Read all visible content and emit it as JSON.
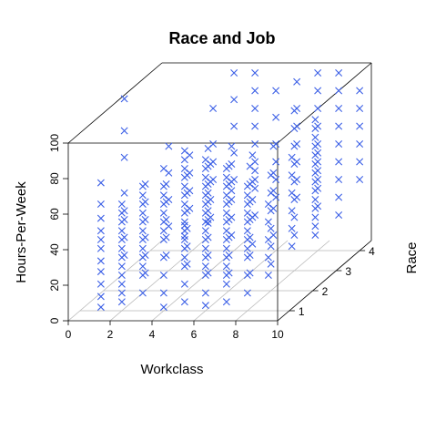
{
  "chart_data": {
    "type": "scatter",
    "title": "Race and Job",
    "xlabel": "Workclass",
    "ylabel": "Race",
    "zlabel": "Hours-Per-Week",
    "xlim": [
      0,
      10
    ],
    "ylim": [
      0.5,
      4.5
    ],
    "zlim": [
      0,
      100
    ],
    "x_ticks": [
      "0",
      "2",
      "4",
      "6",
      "8",
      "10"
    ],
    "y_ticks": [
      "1",
      "2",
      "3",
      "4"
    ],
    "z_ticks": [
      "0",
      "20",
      "40",
      "60",
      "80",
      "100"
    ],
    "marker": "x",
    "color": "#3a5ee6",
    "grid": true,
    "columns": [
      {
        "x": 1,
        "y": 1,
        "z": [
          2,
          8,
          15,
          22,
          28,
          35,
          40,
          45,
          52,
          60,
          72
        ]
      },
      {
        "x": 1,
        "y": 2,
        "z": [
          20,
          30,
          40,
          45,
          55,
          75,
          90,
          108
        ]
      },
      {
        "x": 2,
        "y": 1,
        "z": [
          5,
          10,
          15,
          20,
          25,
          30,
          35,
          40,
          45,
          50,
          55,
          60
        ]
      },
      {
        "x": 2,
        "y": 2,
        "z": [
          10,
          20,
          30,
          40,
          50,
          60
        ]
      },
      {
        "x": 2,
        "y": 3,
        "z": [
          25,
          40,
          55,
          70
        ]
      },
      {
        "x": 3,
        "y": 1,
        "z": [
          10,
          20,
          25,
          30,
          35,
          40,
          45,
          50,
          55,
          60,
          65,
          70
        ]
      },
      {
        "x": 3,
        "y": 2,
        "z": [
          20,
          30,
          40,
          50,
          60
        ]
      },
      {
        "x": 3,
        "y": 3,
        "z": [
          35,
          45,
          55,
          65
        ]
      },
      {
        "x": 3,
        "y": 4,
        "z": [
          40,
          50,
          60,
          80
        ]
      },
      {
        "x": 4,
        "y": 1,
        "z": [
          2,
          10,
          20,
          30,
          40,
          45,
          50,
          55,
          60,
          65,
          70,
          80
        ]
      },
      {
        "x": 4,
        "y": 2,
        "z": [
          15,
          25,
          35,
          45,
          55,
          65
        ]
      },
      {
        "x": 4,
        "y": 3,
        "z": [
          30,
          40,
          50,
          60
        ]
      },
      {
        "x": 4,
        "y": 4,
        "z": [
          40,
          55,
          70,
          85,
          100
        ]
      },
      {
        "x": 5,
        "y": 1,
        "z": [
          5,
          15,
          25,
          30,
          35,
          40,
          42,
          45,
          48,
          50,
          55,
          60,
          65,
          70,
          75,
          80,
          85,
          90
        ]
      },
      {
        "x": 5,
        "y": 2,
        "z": [
          10,
          20,
          30,
          38,
          40,
          45,
          50,
          55,
          60,
          70,
          80
        ]
      },
      {
        "x": 5,
        "y": 3,
        "z": [
          20,
          30,
          40,
          45,
          50,
          60,
          70
        ]
      },
      {
        "x": 5,
        "y": 4,
        "z": [
          20,
          35,
          40,
          45,
          50,
          60,
          70,
          80,
          90,
          100
        ]
      },
      {
        "x": 6,
        "y": 1,
        "z": [
          3,
          10,
          20,
          25,
          30,
          35,
          40,
          45,
          50,
          55,
          60,
          65,
          70,
          75,
          80,
          85
        ]
      },
      {
        "x": 6,
        "y": 2,
        "z": [
          10,
          20,
          30,
          40,
          50,
          60,
          70
        ]
      },
      {
        "x": 6,
        "y": 3,
        "z": [
          15,
          30,
          40,
          50,
          65
        ]
      },
      {
        "x": 6,
        "y": 4,
        "z": [
          30,
          40,
          50,
          60,
          75,
          90
        ]
      },
      {
        "x": 7,
        "y": 1,
        "z": [
          5,
          15,
          20,
          25,
          30,
          35,
          40,
          45,
          50,
          55,
          60,
          65,
          70,
          75,
          80
        ]
      },
      {
        "x": 7,
        "y": 2,
        "z": [
          10,
          20,
          30,
          40,
          50,
          60,
          70
        ]
      },
      {
        "x": 7,
        "y": 3,
        "z": [
          20,
          35,
          45,
          55,
          70
        ]
      },
      {
        "x": 7,
        "y": 4,
        "z": [
          30,
          40,
          50,
          60,
          70,
          80,
          95
        ]
      },
      {
        "x": 8,
        "y": 1,
        "z": [
          10,
          20,
          30,
          35,
          40,
          45,
          50,
          55,
          60,
          65,
          70
        ]
      },
      {
        "x": 8,
        "y": 2,
        "z": [
          15,
          25,
          35,
          45,
          55,
          65
        ]
      },
      {
        "x": 8,
        "y": 3,
        "z": [
          20,
          30,
          40,
          50,
          60,
          70,
          80,
          90
        ]
      },
      {
        "x": 8,
        "y": 4,
        "z": [
          25,
          35,
          40,
          45,
          50,
          55,
          60,
          70,
          80,
          90,
          100
        ]
      },
      {
        "x": 9,
        "y": 1,
        "z": [
          20,
          30,
          40,
          50,
          60
        ]
      },
      {
        "x": 9,
        "y": 2,
        "z": [
          25,
          35,
          45,
          55,
          65,
          75
        ]
      },
      {
        "x": 9,
        "y": 3,
        "z": [
          20,
          25,
          30,
          35,
          40,
          45,
          50,
          55,
          60,
          65,
          70,
          75,
          80,
          85
        ]
      },
      {
        "x": 9,
        "y": 4,
        "z": [
          20,
          30,
          40,
          50,
          60,
          70,
          80,
          90,
          100
        ]
      },
      {
        "x": 10,
        "y": 4,
        "z": [
          40,
          50,
          60,
          70,
          80,
          90
        ]
      }
    ]
  }
}
